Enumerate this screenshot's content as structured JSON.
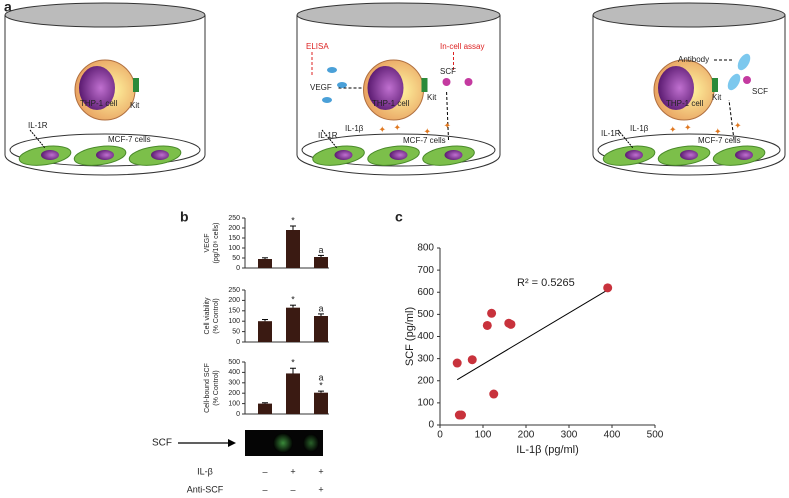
{
  "diagram": {
    "panel": "a",
    "vessels": [
      {
        "thp1": "THP-1 cell",
        "kit": "Kit",
        "il1r": "IL-1R",
        "mcf7": "MCF-7 cells"
      },
      {
        "elisa": "ELISA",
        "assay": "In-cell assay",
        "vegf": "VEGF",
        "thp1": "THP-1 cell",
        "kit": "Kit",
        "scf": "SCF",
        "il1r": "IL-1R",
        "il1b": "IL-1β",
        "mcf7": "MCF-7 cells"
      },
      {
        "antibody": "Antibody",
        "scf": "SCF",
        "thp1": "THP-1 cell",
        "kit": "Kit",
        "il1r": "IL-1R",
        "il1b": "IL-1β",
        "mcf7": "MCF-7 cells"
      }
    ]
  },
  "panels": [
    "b",
    "c"
  ],
  "blot": {
    "label": "SCF"
  },
  "treatments": [
    {
      "label": "IL-β",
      "marks": [
        "–",
        "+",
        "+"
      ]
    },
    {
      "label": "Anti-SCF",
      "marks": [
        "–",
        "–",
        "+"
      ]
    }
  ],
  "chart_data": [
    {
      "type": "bar",
      "y_label": [
        "VEGF",
        "(pg/10⁶ cells)"
      ],
      "categories": [
        null,
        null,
        null
      ],
      "values": [
        45,
        190,
        55
      ],
      "errors": [
        6,
        20,
        8
      ],
      "annotations": [
        [],
        [
          "*"
        ],
        [
          "a"
        ]
      ],
      "color": "#3a1a12",
      "ylim": [
        0,
        250
      ],
      "yticks": [
        0,
        50,
        100,
        150,
        200,
        250
      ]
    },
    {
      "type": "bar",
      "y_label": [
        "Cell viability",
        "(% Control)"
      ],
      "categories": [
        null,
        null,
        null
      ],
      "values": [
        100,
        165,
        125
      ],
      "errors": [
        8,
        12,
        10
      ],
      "annotations": [
        [],
        [
          "*"
        ],
        [
          "a"
        ]
      ],
      "color": "#3a1a12",
      "ylim": [
        0,
        250
      ],
      "yticks": [
        0,
        50,
        100,
        150,
        200,
        250
      ]
    },
    {
      "type": "bar",
      "y_label": [
        "Cell-bound SCF",
        "(% Control)"
      ],
      "categories": [
        null,
        null,
        null
      ],
      "values": [
        100,
        390,
        205
      ],
      "errors": [
        8,
        50,
        15
      ],
      "annotations": [
        [],
        [
          "*"
        ],
        [
          "a",
          "*"
        ]
      ],
      "color": "#3a1a12",
      "ylim": [
        0,
        500
      ],
      "yticks": [
        0,
        100,
        200,
        300,
        400,
        500
      ]
    },
    {
      "type": "scatter",
      "x_label": "IL-1β (pg/ml)",
      "y_label": "SCF (pg/ml)",
      "annotation": "R² = 0.5265",
      "x": [
        40,
        45,
        50,
        75,
        110,
        120,
        125,
        160,
        165,
        390
      ],
      "values": [
        280,
        45,
        45,
        295,
        450,
        505,
        140,
        460,
        455,
        620
      ],
      "color": "#c8323c",
      "fit_line": {
        "x": [
          40,
          385
        ],
        "y": [
          205,
          605
        ]
      },
      "xlim": [
        0,
        500
      ],
      "xticks": [
        0,
        100,
        200,
        300,
        400,
        500
      ],
      "ylim": [
        0,
        800
      ],
      "yticks": [
        0,
        100,
        200,
        300,
        400,
        500,
        600,
        700,
        800
      ]
    }
  ]
}
